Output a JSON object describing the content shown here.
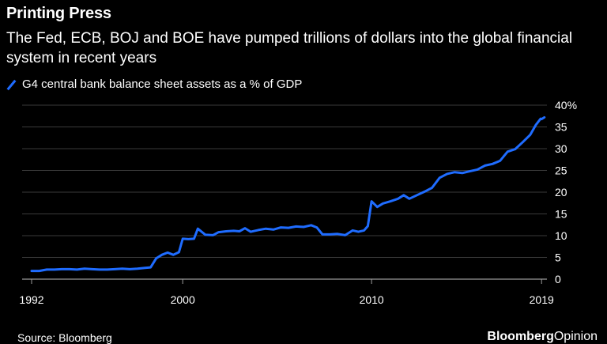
{
  "header": {
    "title": "Printing Press",
    "subtitle": "The Fed, ECB, BOJ and BOE have pumped trillions of dollars into the global financial system in recent years"
  },
  "legend": {
    "label": "G4 central bank balance sheet assets as a % of GDP",
    "color": "#1f6cff"
  },
  "footer": {
    "source": "Source: Bloomberg",
    "brand": "Bloomberg",
    "brand_suffix": "Opinion"
  },
  "chart_data": {
    "type": "line",
    "ylabel": "",
    "xlabel": "",
    "ylim": [
      0,
      40
    ],
    "xlim": [
      1992,
      2019.2
    ],
    "y_ticks": [
      {
        "value": 40,
        "label": "40%"
      },
      {
        "value": 35,
        "label": "35"
      },
      {
        "value": 30,
        "label": "30"
      },
      {
        "value": 25,
        "label": "25"
      },
      {
        "value": 20,
        "label": "20"
      },
      {
        "value": 15,
        "label": "15"
      },
      {
        "value": 10,
        "label": "10"
      },
      {
        "value": 5,
        "label": "5"
      },
      {
        "value": 0,
        "label": "0"
      }
    ],
    "x_ticks": [
      {
        "value": 1992,
        "label": "1992"
      },
      {
        "value": 2000,
        "label": "2000"
      },
      {
        "value": 2010,
        "label": "2010"
      },
      {
        "value": 2019,
        "label": "2019"
      }
    ],
    "grid": true,
    "legend_position": "top-left",
    "series": [
      {
        "name": "G4 central bank balance sheet assets as a % of GDP",
        "color": "#1f6cff",
        "points": [
          [
            1992.0,
            1.9
          ],
          [
            1992.4,
            1.9
          ],
          [
            1992.8,
            2.2
          ],
          [
            1993.2,
            2.2
          ],
          [
            1993.6,
            2.3
          ],
          [
            1994.0,
            2.3
          ],
          [
            1994.4,
            2.2
          ],
          [
            1994.8,
            2.4
          ],
          [
            1995.2,
            2.3
          ],
          [
            1995.6,
            2.2
          ],
          [
            1996.0,
            2.2
          ],
          [
            1996.4,
            2.3
          ],
          [
            1996.8,
            2.4
          ],
          [
            1997.2,
            2.3
          ],
          [
            1997.6,
            2.4
          ],
          [
            1998.0,
            2.6
          ],
          [
            1998.3,
            2.7
          ],
          [
            1998.6,
            4.8
          ],
          [
            1998.9,
            5.6
          ],
          [
            1999.2,
            6.1
          ],
          [
            1999.5,
            5.6
          ],
          [
            1999.8,
            6.2
          ],
          [
            2000.0,
            9.3
          ],
          [
            2000.3,
            9.2
          ],
          [
            2000.6,
            9.3
          ],
          [
            2000.8,
            11.6
          ],
          [
            2001.2,
            10.2
          ],
          [
            2001.6,
            10.1
          ],
          [
            2001.9,
            10.8
          ],
          [
            2002.3,
            11.0
          ],
          [
            2002.7,
            11.1
          ],
          [
            2003.0,
            11.0
          ],
          [
            2003.3,
            11.7
          ],
          [
            2003.6,
            10.9
          ],
          [
            2004.0,
            11.3
          ],
          [
            2004.4,
            11.6
          ],
          [
            2004.8,
            11.4
          ],
          [
            2005.2,
            11.9
          ],
          [
            2005.6,
            11.8
          ],
          [
            2006.0,
            12.1
          ],
          [
            2006.4,
            12.0
          ],
          [
            2006.8,
            12.4
          ],
          [
            2007.1,
            11.9
          ],
          [
            2007.4,
            10.3
          ],
          [
            2007.8,
            10.3
          ],
          [
            2008.2,
            10.4
          ],
          [
            2008.6,
            10.1
          ],
          [
            2009.0,
            11.2
          ],
          [
            2009.3,
            10.9
          ],
          [
            2009.6,
            11.2
          ],
          [
            2009.8,
            12.2
          ],
          [
            2010.0,
            17.9
          ],
          [
            2010.3,
            16.6
          ],
          [
            2010.6,
            17.4
          ],
          [
            2011.0,
            17.9
          ],
          [
            2011.4,
            18.5
          ],
          [
            2011.7,
            19.3
          ],
          [
            2012.0,
            18.5
          ],
          [
            2012.4,
            19.3
          ],
          [
            2012.8,
            20.1
          ],
          [
            2013.2,
            21.0
          ],
          [
            2013.6,
            23.3
          ],
          [
            2014.0,
            24.2
          ],
          [
            2014.4,
            24.6
          ],
          [
            2014.8,
            24.4
          ],
          [
            2015.2,
            24.8
          ],
          [
            2015.6,
            25.2
          ],
          [
            2016.0,
            26.1
          ],
          [
            2016.4,
            26.5
          ],
          [
            2016.8,
            27.2
          ],
          [
            2017.2,
            29.3
          ],
          [
            2017.6,
            29.9
          ],
          [
            2018.0,
            31.5
          ],
          [
            2018.4,
            33.2
          ],
          [
            2018.7,
            35.5
          ],
          [
            2018.95,
            36.9
          ],
          [
            2019.0,
            36.8
          ],
          [
            2019.15,
            37.2
          ]
        ]
      }
    ]
  }
}
